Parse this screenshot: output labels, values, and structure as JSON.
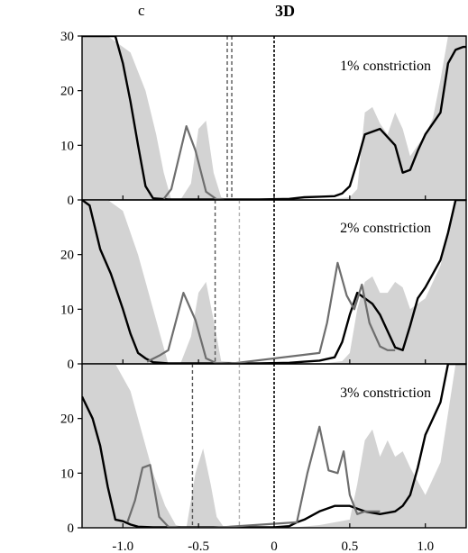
{
  "figure": {
    "panel_letter": "c",
    "title": "3D"
  },
  "chart_data": [
    {
      "type": "area",
      "label": "1% constriction",
      "xlim": [
        -1.27,
        1.27
      ],
      "ylim": [
        0,
        30
      ],
      "xticks": [
        -1.0,
        -0.5,
        0,
        0.5,
        1.0
      ],
      "xtick_labels": [
        "-1.0",
        "-0.5",
        "0",
        "0.5",
        "1.0"
      ],
      "yticks": [
        0,
        10,
        20,
        30
      ],
      "ytick_labels": [
        "0",
        "10",
        "20",
        "30"
      ],
      "series": [
        {
          "style": "gray-fill",
          "color": "#d3d3d3",
          "x": [
            -1.27,
            -1.1,
            -0.95,
            -0.85,
            -0.78,
            -0.73,
            -0.68,
            -0.62,
            -0.55,
            -0.5,
            -0.45,
            -0.4,
            -0.35,
            -0.3,
            -0.1,
            0.3,
            0.5,
            0.55,
            0.6,
            0.65,
            0.7,
            0.75,
            0.8,
            0.85,
            0.9,
            0.95,
            1.0,
            1.05,
            1.1,
            1.15,
            1.2,
            1.27
          ],
          "y": [
            30,
            30,
            27,
            20,
            12,
            5,
            0,
            0,
            3,
            13,
            14.5,
            5,
            0.5,
            0,
            0,
            0,
            0.5,
            2,
            16,
            17,
            14,
            12,
            16,
            13,
            8,
            10,
            12,
            15,
            22,
            30,
            30,
            30
          ]
        },
        {
          "style": "black-line",
          "color": "#000000",
          "x": [
            -1.27,
            -1.2,
            -1.15,
            -1.1,
            -1.05,
            -1.0,
            -0.95,
            -0.9,
            -0.85,
            -0.8,
            -0.75,
            -0.7,
            -0.6,
            -0.4,
            -0.3,
            -0.1,
            0.1,
            0.2,
            0.3,
            0.4,
            0.45,
            0.5,
            0.55,
            0.6,
            0.7,
            0.8,
            0.85,
            0.9,
            0.95,
            1.0,
            1.05,
            1.1,
            1.15,
            1.2,
            1.25,
            1.27
          ],
          "y": [
            30,
            30,
            30,
            30,
            30,
            25,
            18,
            10,
            2.5,
            0.3,
            0.2,
            0.1,
            0.1,
            0.1,
            0.1,
            0.1,
            0.2,
            0.5,
            0.6,
            0.7,
            1.2,
            2.5,
            7,
            12,
            13,
            10,
            5,
            5.5,
            9,
            12,
            14,
            16,
            25,
            27.5,
            28,
            28
          ]
        },
        {
          "style": "gray-line",
          "color": "#6e6e6e",
          "x": [
            -0.73,
            -0.68,
            -0.58,
            -0.52,
            -0.45,
            -0.38,
            -0.33
          ],
          "y": [
            0.2,
            2,
            13.5,
            9,
            1.5,
            0.1,
            0
          ]
        }
      ],
      "vlines": [
        {
          "x": -0.31,
          "style": "dark-dash"
        },
        {
          "x": -0.28,
          "style": "dark-dash"
        },
        {
          "x": 0,
          "style": "black-dash"
        }
      ]
    },
    {
      "type": "area",
      "label": "2% constriction",
      "xlim": [
        -1.27,
        1.27
      ],
      "ylim": [
        0,
        30
      ],
      "xticks": [
        -1.0,
        -0.5,
        0,
        0.5,
        1.0
      ],
      "xtick_labels": [
        "-1.0",
        "-0.5",
        "0",
        "0.5",
        "1.0"
      ],
      "yticks": [
        0,
        10,
        20
      ],
      "ytick_labels": [
        "0",
        "10",
        "20"
      ],
      "series": [
        {
          "style": "gray-fill",
          "color": "#d3d3d3",
          "x": [
            -1.27,
            -1.1,
            -1.0,
            -0.9,
            -0.82,
            -0.75,
            -0.7,
            -0.62,
            -0.55,
            -0.5,
            -0.45,
            -0.4,
            -0.35,
            -0.1,
            0.3,
            0.45,
            0.5,
            0.55,
            0.6,
            0.65,
            0.7,
            0.75,
            0.8,
            0.85,
            0.9,
            1.0,
            1.1,
            1.2,
            1.27
          ],
          "y": [
            30,
            30,
            28,
            20,
            12,
            5,
            0,
            0,
            5,
            13,
            15,
            8,
            0.5,
            0,
            0,
            0.5,
            2,
            10,
            15,
            16,
            13,
            13,
            15,
            14,
            10,
            12,
            18,
            30,
            30
          ]
        },
        {
          "style": "black-line",
          "color": "#000000",
          "x": [
            -1.27,
            -1.22,
            -1.15,
            -1.08,
            -1.0,
            -0.95,
            -0.9,
            -0.85,
            -0.8,
            -0.7,
            -0.5,
            -0.3,
            -0.1,
            0.1,
            0.2,
            0.3,
            0.4,
            0.45,
            0.5,
            0.55,
            0.6,
            0.65,
            0.7,
            0.75,
            0.8,
            0.85,
            0.9,
            0.95,
            1.0,
            1.05,
            1.1,
            1.15,
            1.2,
            1.27
          ],
          "y": [
            30,
            29,
            21,
            16.5,
            10,
            5.5,
            2,
            1,
            0.3,
            0.1,
            0.1,
            0.1,
            0.1,
            0.2,
            0.4,
            0.6,
            1.2,
            4,
            9,
            13,
            12,
            11,
            9,
            6,
            3,
            2.5,
            7,
            12,
            14,
            16.5,
            19,
            24,
            30,
            30
          ]
        },
        {
          "style": "gray-line",
          "color": "#6e6e6e",
          "x": [
            -0.84,
            -0.76,
            -0.7,
            -0.6,
            -0.52,
            -0.45,
            -0.38,
            -0.3,
            0.3,
            0.35,
            0.42,
            0.48,
            0.53,
            0.58,
            0.63,
            0.7,
            0.75,
            0.8
          ],
          "y": [
            0.4,
            1.5,
            2.5,
            13,
            8,
            1,
            0.1,
            0,
            2,
            7.5,
            18.5,
            12.5,
            10,
            14.5,
            7.5,
            3.2,
            2.5,
            2.5
          ]
        }
      ],
      "vlines": [
        {
          "x": -0.39,
          "style": "dark-dash"
        },
        {
          "x": -0.23,
          "style": "light-dash"
        },
        {
          "x": 0,
          "style": "black-dash"
        }
      ]
    },
    {
      "type": "area",
      "label": "3% constriction",
      "xlim": [
        -1.27,
        1.27
      ],
      "ylim": [
        0,
        30
      ],
      "xticks": [
        -1.0,
        -0.5,
        0,
        0.5,
        1.0
      ],
      "xtick_labels": [
        "-1.0",
        "-0.5",
        "0",
        "0.5",
        "1.0"
      ],
      "yticks": [
        0,
        10,
        20
      ],
      "ytick_labels": [
        "0",
        "10",
        "20"
      ],
      "series": [
        {
          "style": "gray-fill",
          "color": "#d3d3d3",
          "x": [
            -1.27,
            -1.05,
            -0.95,
            -0.88,
            -0.8,
            -0.72,
            -0.65,
            -0.58,
            -0.52,
            -0.47,
            -0.42,
            -0.38,
            -0.33,
            -0.1,
            0.1,
            0.3,
            0.5,
            0.55,
            0.6,
            0.65,
            0.7,
            0.75,
            0.8,
            0.85,
            0.9,
            1.0,
            1.1,
            1.2,
            1.27
          ],
          "y": [
            30,
            30,
            25,
            18,
            10,
            4,
            0.5,
            0,
            10,
            14.5,
            8,
            2,
            0,
            0,
            0,
            0.5,
            1.5,
            8,
            16,
            18,
            13,
            16,
            13,
            14,
            11,
            6,
            12,
            30,
            30
          ]
        },
        {
          "style": "black-line",
          "color": "#000000",
          "x": [
            -1.27,
            -1.2,
            -1.15,
            -1.1,
            -1.05,
            -1.0,
            -0.95,
            -0.9,
            -0.8,
            -0.6,
            -0.4,
            -0.2,
            0,
            0.1,
            0.15,
            0.2,
            0.3,
            0.4,
            0.5,
            0.55,
            0.6,
            0.7,
            0.8,
            0.85,
            0.9,
            0.95,
            1.0,
            1.05,
            1.1,
            1.15,
            1.2,
            1.27
          ],
          "y": [
            24,
            20,
            15,
            7.5,
            1.5,
            1.2,
            0.6,
            0.2,
            0.1,
            0.1,
            0.1,
            0.1,
            0.1,
            0.3,
            1,
            1.5,
            3,
            4,
            4,
            3.5,
            3,
            2.5,
            3,
            4,
            6,
            11,
            17,
            20,
            23,
            30,
            30,
            30
          ]
        },
        {
          "style": "gray-line",
          "color": "#6e6e6e",
          "x": [
            -0.97,
            -0.92,
            -0.87,
            -0.82,
            -0.76,
            -0.7,
            -0.63,
            -0.55,
            -0.4,
            0.15,
            0.22,
            0.3,
            0.36,
            0.42,
            0.46,
            0.5,
            0.55,
            0.6,
            0.65,
            0.7
          ],
          "y": [
            1,
            5,
            11,
            11.5,
            2,
            0.2,
            0,
            0,
            0,
            1,
            10,
            18.5,
            10.5,
            10,
            14,
            6,
            2.5,
            3,
            3,
            3
          ]
        }
      ],
      "vlines": [
        {
          "x": -0.54,
          "style": "dark-dash"
        },
        {
          "x": -0.23,
          "style": "light-dash"
        },
        {
          "x": 0,
          "style": "black-dash"
        }
      ]
    }
  ]
}
